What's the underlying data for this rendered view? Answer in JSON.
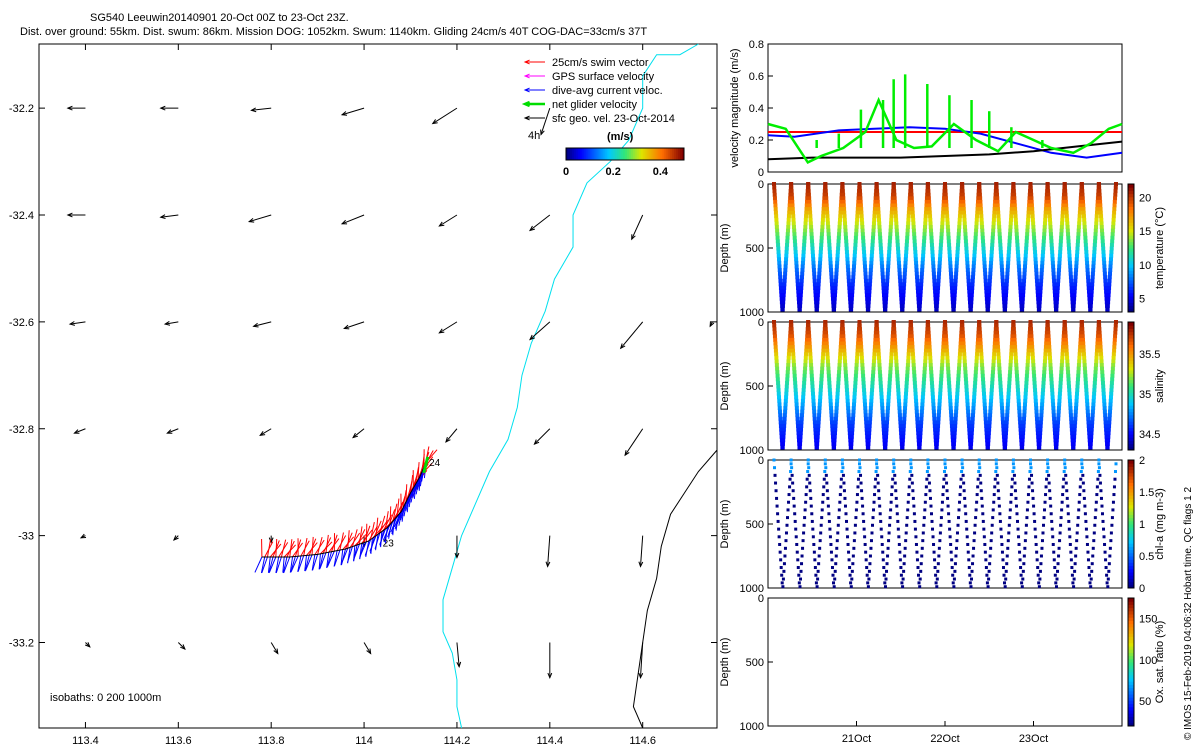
{
  "header": {
    "line1": "SG540 Leeuwin20140901 20-Oct 00Z to 23-Oct 23Z.",
    "line2": "Dist. over ground: 55km. Dist. swum: 86km. Mission DOG: 1052km. Swum: 1140km. Gliding 24cm/s 40T COG-DAC=33cm/s 37T"
  },
  "credit": "© IMOS 15-Feb-2019 04:06:32 Hobart time. QC flags 1  2",
  "colors": {
    "swim": "#ff0000",
    "gps": "#ff00ff",
    "dac": "#0000ff",
    "net": "#00dd00",
    "geo": "#000000",
    "coast": "#00e0ee",
    "isobath": "#000000"
  },
  "chart_data": [
    {
      "type": "vector_map",
      "xticks": [
        113.4,
        113.6,
        113.8,
        114,
        114.2,
        114.4,
        114.6
      ],
      "yticks": [
        -32.2,
        -32.4,
        -32.6,
        -32.8,
        -33,
        -33.2
      ],
      "xlim": [
        113.3,
        114.76
      ],
      "ylim": [
        -33.36,
        -32.08
      ],
      "legend": [
        {
          "label": "25cm/s swim vector",
          "color": "#ff0000"
        },
        {
          "label": "GPS surface velocity",
          "color": "#ff00ff"
        },
        {
          "label": "dive-avg current veloc.",
          "color": "#0000ff"
        },
        {
          "label": "net glider velocity",
          "color": "#00dd00"
        },
        {
          "label": "sfc geo. vel. 23-Oct-2014",
          "color": "#000000"
        }
      ],
      "interval_label": "4h",
      "colorbar": {
        "label": "(m/s)",
        "ticks": [
          "0",
          "0.2",
          "0.4"
        ],
        "range": [
          0,
          0.5
        ]
      },
      "isobath_label": "isobaths: 0   200  1000m",
      "track_labels": [
        {
          "text": "24",
          "lon": 114.14,
          "lat": -32.87
        },
        {
          "text": "23",
          "lon": 114.04,
          "lat": -33.02
        }
      ],
      "track": [
        [
          113.78,
          -33.04
        ],
        [
          113.84,
          -33.04
        ],
        [
          113.9,
          -33.035
        ],
        [
          113.96,
          -33.025
        ],
        [
          114.01,
          -33.01
        ],
        [
          114.05,
          -32.985
        ],
        [
          114.08,
          -32.955
        ],
        [
          114.1,
          -32.92
        ],
        [
          114.12,
          -32.89
        ],
        [
          114.135,
          -32.86
        ]
      ],
      "geo_vectors": {
        "lons": [
          113.4,
          113.6,
          113.8,
          114.0,
          114.2,
          114.4,
          114.6,
          114.75
        ],
        "lats": [
          -32.2,
          -32.4,
          -32.6,
          -32.8,
          -33.0,
          -33.2
        ],
        "u": [
          [
            -0.08,
            -0.08,
            -0.09,
            -0.1,
            -0.11,
            -0.04,
            0.0,
            0.0
          ],
          [
            -0.08,
            -0.08,
            -0.1,
            -0.1,
            -0.08,
            -0.09,
            -0.05,
            0.0
          ],
          [
            -0.07,
            -0.06,
            -0.08,
            -0.09,
            -0.08,
            -0.09,
            -0.1,
            -0.01
          ],
          [
            -0.05,
            -0.05,
            -0.05,
            -0.05,
            -0.05,
            -0.07,
            -0.08,
            0.0
          ],
          [
            -0.02,
            -0.02,
            0.0,
            0.0,
            0.0,
            -0.01,
            -0.01,
            0.0
          ],
          [
            0.02,
            0.03,
            0.03,
            0.03,
            0.01,
            0.0,
            -0.01,
            0.0
          ]
        ],
        "v": [
          [
            0.0,
            0.0,
            -0.01,
            -0.03,
            -0.07,
            -0.12,
            0.0,
            0.0
          ],
          [
            0.0,
            -0.01,
            -0.03,
            -0.04,
            -0.05,
            -0.07,
            -0.11,
            0.0
          ],
          [
            -0.01,
            -0.01,
            -0.02,
            -0.03,
            -0.05,
            -0.08,
            -0.12,
            -0.02
          ],
          [
            -0.02,
            -0.02,
            -0.03,
            -0.04,
            -0.06,
            -0.07,
            -0.12,
            0.0
          ],
          [
            -0.01,
            -0.02,
            -0.03,
            -0.05,
            -0.1,
            -0.14,
            -0.14,
            0.0
          ],
          [
            -0.02,
            -0.03,
            -0.05,
            -0.05,
            -0.11,
            -0.16,
            -0.16,
            0.0
          ]
        ]
      },
      "coastline": [
        [
          114.72,
          -32.08
        ],
        [
          114.68,
          -32.1
        ],
        [
          114.63,
          -32.1
        ],
        [
          114.6,
          -32.14
        ],
        [
          114.6,
          -32.2
        ],
        [
          114.57,
          -32.26
        ],
        [
          114.53,
          -32.3
        ],
        [
          114.48,
          -32.34
        ],
        [
          114.45,
          -32.4
        ],
        [
          114.45,
          -32.46
        ],
        [
          114.41,
          -32.52
        ],
        [
          114.39,
          -32.58
        ],
        [
          114.36,
          -32.64
        ],
        [
          114.34,
          -32.7
        ],
        [
          114.33,
          -32.76
        ],
        [
          114.31,
          -32.82
        ],
        [
          114.27,
          -32.88
        ],
        [
          114.24,
          -32.94
        ],
        [
          114.21,
          -33.0
        ],
        [
          114.19,
          -33.06
        ],
        [
          114.17,
          -33.12
        ],
        [
          114.17,
          -33.18
        ],
        [
          114.19,
          -33.22
        ],
        [
          114.2,
          -33.27
        ],
        [
          114.2,
          -33.32
        ],
        [
          114.21,
          -33.36
        ]
      ],
      "isobath": [
        [
          114.76,
          -32.84
        ],
        [
          114.72,
          -32.88
        ],
        [
          114.69,
          -32.92
        ],
        [
          114.66,
          -32.96
        ],
        [
          114.64,
          -33.02
        ],
        [
          114.63,
          -33.08
        ],
        [
          114.61,
          -33.14
        ],
        [
          114.6,
          -33.2
        ],
        [
          114.59,
          -33.26
        ],
        [
          114.58,
          -33.32
        ],
        [
          114.6,
          -33.36
        ]
      ]
    },
    {
      "type": "line",
      "ylabel": "velocity magnitude (m/s)",
      "yticks": [
        0,
        0.2,
        0.4,
        0.6,
        0.8
      ],
      "ylim": [
        0,
        0.8
      ],
      "xlim": [
        20.0,
        24.0
      ],
      "series": [
        {
          "color": "#ff0000",
          "x": [
            20.0,
            24.0
          ],
          "y": [
            0.25,
            0.25
          ]
        },
        {
          "color": "#0000ff",
          "x": [
            20.0,
            20.3,
            20.8,
            21.2,
            21.6,
            22.0,
            22.4,
            22.8,
            23.2,
            23.6,
            24.0
          ],
          "y": [
            0.23,
            0.22,
            0.26,
            0.27,
            0.28,
            0.27,
            0.24,
            0.18,
            0.12,
            0.09,
            0.12
          ]
        },
        {
          "color": "#000000",
          "x": [
            20.0,
            20.5,
            21.0,
            21.5,
            22.0,
            22.5,
            23.0,
            23.5,
            24.0
          ],
          "y": [
            0.08,
            0.09,
            0.09,
            0.09,
            0.1,
            0.11,
            0.13,
            0.16,
            0.19
          ]
        },
        {
          "color": "#00ee00",
          "x": [
            20.0,
            20.2,
            20.45,
            20.6,
            20.85,
            21.1,
            21.25,
            21.45,
            21.65,
            21.85,
            22.1,
            22.35,
            22.6,
            22.8,
            23.0,
            23.2,
            23.45,
            23.65,
            23.85,
            24.0
          ],
          "y": [
            0.3,
            0.27,
            0.06,
            0.1,
            0.15,
            0.25,
            0.45,
            0.2,
            0.15,
            0.16,
            0.3,
            0.2,
            0.13,
            0.25,
            0.2,
            0.15,
            0.12,
            0.18,
            0.27,
            0.3
          ]
        }
      ],
      "spikes": [
        {
          "x": 20.55,
          "y": 0.2
        },
        {
          "x": 20.8,
          "y": 0.24
        },
        {
          "x": 21.05,
          "y": 0.39
        },
        {
          "x": 21.3,
          "y": 0.45
        },
        {
          "x": 21.42,
          "y": 0.58
        },
        {
          "x": 21.55,
          "y": 0.61
        },
        {
          "x": 21.8,
          "y": 0.55
        },
        {
          "x": 22.05,
          "y": 0.48
        },
        {
          "x": 22.3,
          "y": 0.45
        },
        {
          "x": 22.5,
          "y": 0.38
        },
        {
          "x": 22.75,
          "y": 0.28
        },
        {
          "x": 23.1,
          "y": 0.2
        }
      ]
    },
    {
      "type": "scatter",
      "ylabel": "Depth (m)",
      "yticks": [
        0,
        500,
        1000
      ],
      "ylim": [
        0,
        1000
      ],
      "xlim": [
        20.0,
        24.0
      ],
      "colorbar": {
        "label": "temperature (°C)",
        "ticks": [
          "5",
          "10",
          "15",
          "20"
        ],
        "range": [
          3,
          22
        ]
      },
      "dives": 20,
      "profile": [
        [
          0,
          21
        ],
        [
          100,
          20
        ],
        [
          200,
          17
        ],
        [
          350,
          14
        ],
        [
          500,
          11
        ],
        [
          650,
          8
        ],
        [
          800,
          6
        ],
        [
          1000,
          4
        ]
      ]
    },
    {
      "type": "scatter",
      "ylabel": "Depth (m)",
      "yticks": [
        0,
        500,
        1000
      ],
      "ylim": [
        0,
        1000
      ],
      "xlim": [
        20.0,
        24.0
      ],
      "colorbar": {
        "label": "salinity",
        "ticks": [
          "34.5",
          "35",
          "35.5"
        ],
        "range": [
          34.3,
          35.9
        ]
      },
      "dives": 20,
      "profile": [
        [
          0,
          35.8
        ],
        [
          100,
          35.7
        ],
        [
          200,
          35.5
        ],
        [
          350,
          35.2
        ],
        [
          500,
          35.0
        ],
        [
          650,
          34.8
        ],
        [
          800,
          34.6
        ],
        [
          1000,
          34.45
        ]
      ]
    },
    {
      "type": "scatter",
      "ylabel": "Depth (m)",
      "yticks": [
        0,
        500,
        1000
      ],
      "ylim": [
        0,
        1000
      ],
      "xlim": [
        20.0,
        24.0
      ],
      "colorbar": {
        "label": "chl-a (mg m-3)",
        "ticks": [
          "0",
          "0.5",
          "1",
          "1.5",
          "2"
        ],
        "range": [
          0,
          2
        ]
      },
      "dives": 20,
      "surface_value": 0.6,
      "deep_value": 0.0
    },
    {
      "type": "scatter",
      "ylabel": "Depth (m)",
      "yticks": [
        0,
        500,
        1000
      ],
      "ylim": [
        0,
        1000
      ],
      "xlim": [
        20.0,
        24.0
      ],
      "xticks": [
        {
          "x": 21.0,
          "label": "21Oct"
        },
        {
          "x": 22.0,
          "label": "22Oct"
        },
        {
          "x": 23.0,
          "label": "23Oct"
        }
      ],
      "colorbar": {
        "label": "Ox. sat. ratio (%)",
        "ticks": [
          "50",
          "100",
          "150"
        ],
        "range": [
          20,
          175
        ]
      },
      "values": []
    }
  ]
}
